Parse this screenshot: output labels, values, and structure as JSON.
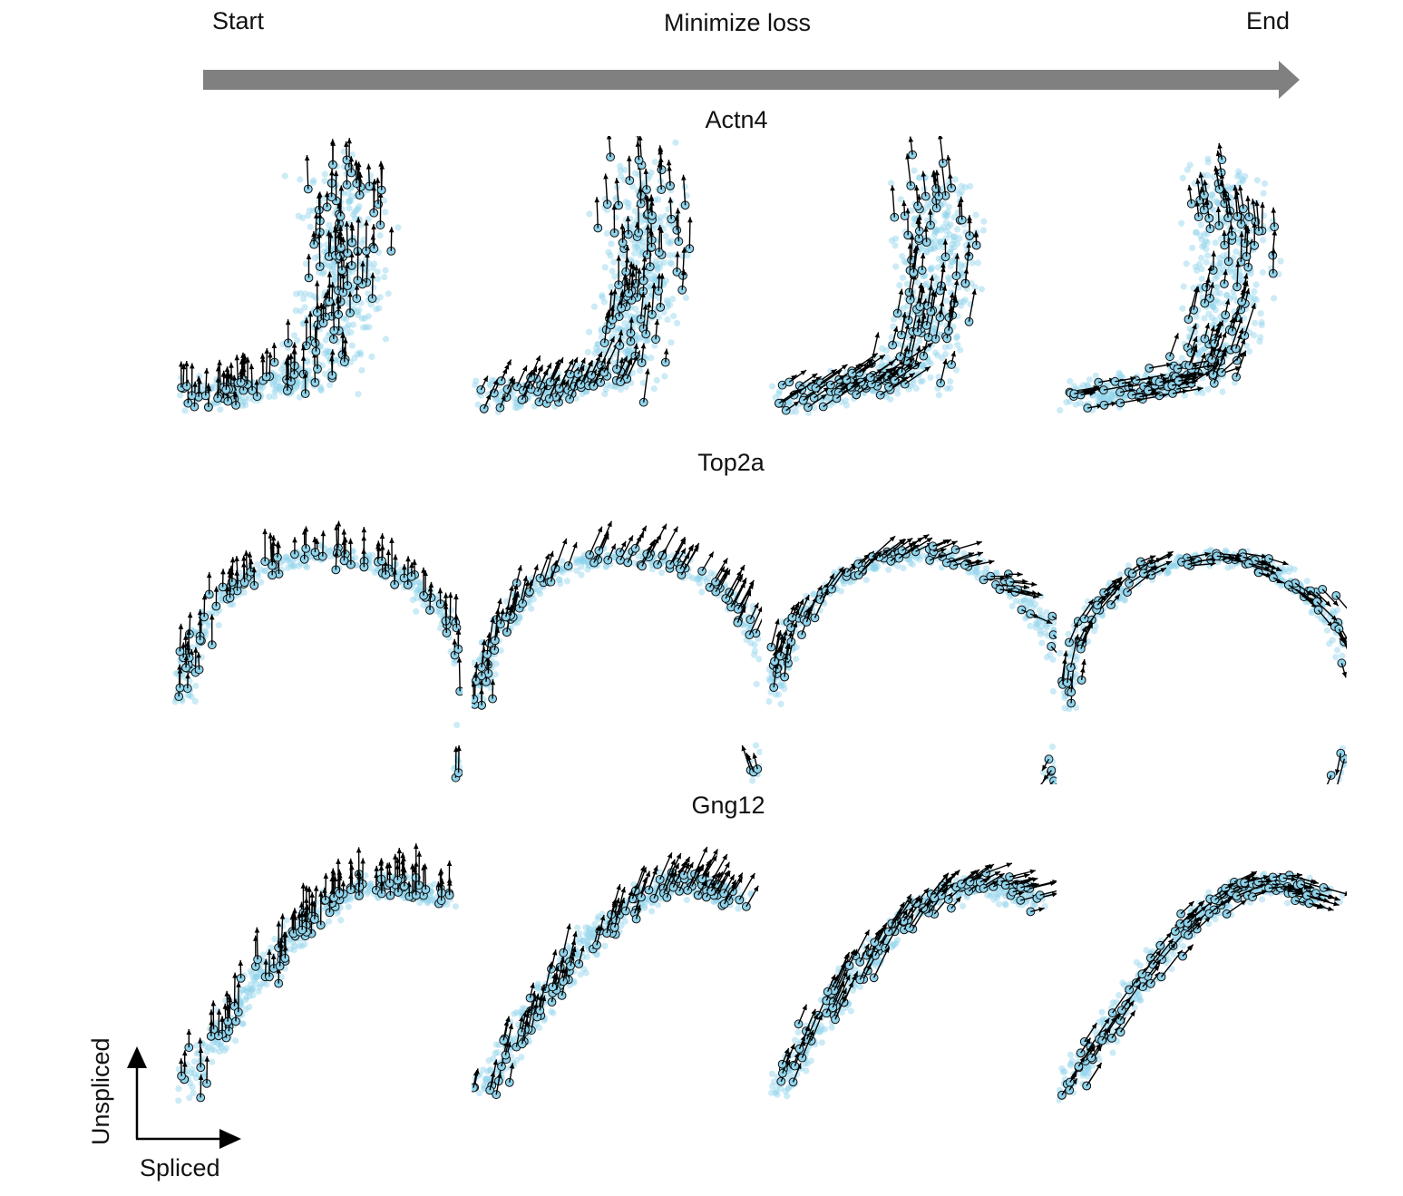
{
  "progress": {
    "start_label": "Start",
    "middle_label": "Minimize loss",
    "end_label": "End",
    "arrow_color": "#808080"
  },
  "axes_key": {
    "x_label": "Spliced",
    "y_label": "Unspliced"
  },
  "colors": {
    "cell_point": "#8fd3eb",
    "velocity_arrow": "#000000"
  },
  "rows": [
    {
      "gene": "Actn4",
      "shape": "blob",
      "panels": 4
    },
    {
      "gene": "Top2a",
      "shape": "hook",
      "panels": 4
    },
    {
      "gene": "Gng12",
      "shape": "arc",
      "panels": 4
    }
  ],
  "panel_stages": [
    "start",
    "early",
    "late",
    "end"
  ]
}
